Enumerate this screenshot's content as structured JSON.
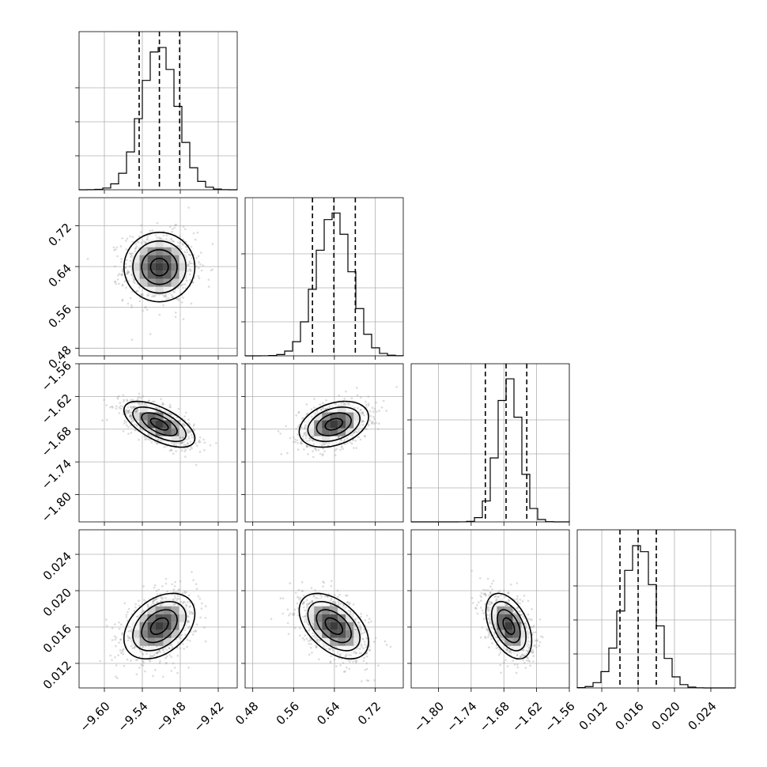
{
  "chart_data": {
    "type": "corner",
    "grid": true,
    "params": [
      {
        "center": -9.513,
        "sigma": 0.028,
        "range": [
          -9.64,
          -9.39
        ],
        "ticks": [
          "-9.60",
          "-9.54",
          "-9.48",
          "-9.42"
        ],
        "tick_values": [
          -9.6,
          -9.54,
          -9.48,
          -9.42
        ],
        "quantiles": [
          -9.545,
          -9.513,
          -9.481
        ]
      },
      {
        "center": 0.639,
        "sigma": 0.034,
        "range": [
          0.465,
          0.775
        ],
        "ticks": [
          "0.48",
          "0.56",
          "0.64",
          "0.72"
        ],
        "tick_values": [
          0.48,
          0.56,
          0.64,
          0.72
        ],
        "quantiles": [
          0.597,
          0.639,
          0.681
        ]
      },
      {
        "center": -1.671,
        "sigma": 0.021,
        "range": [
          -1.85,
          -1.56
        ],
        "ticks": [
          "-1.80",
          "-1.74",
          "-1.68",
          "-1.62",
          "-1.56"
        ],
        "tick_values": [
          -1.8,
          -1.74,
          -1.68,
          -1.62,
          -1.56
        ],
        "quantiles": [
          -1.714,
          -1.676,
          -1.638
        ]
      },
      {
        "center": 0.0161,
        "sigma": 0.0018,
        "range": [
          0.0093,
          0.0267
        ],
        "ticks": [
          "0.012",
          "0.016",
          "0.020",
          "0.024"
        ],
        "tick_values": [
          0.012,
          0.016,
          0.02,
          0.024
        ],
        "quantiles": [
          0.014,
          0.016,
          0.018
        ]
      }
    ],
    "correlations": [
      {
        "pair": [
          1,
          0
        ],
        "rho": 0.0
      },
      {
        "pair": [
          2,
          0
        ],
        "rho": -0.62
      },
      {
        "pair": [
          2,
          1
        ],
        "rho": 0.33
      },
      {
        "pair": [
          3,
          0
        ],
        "rho": 0.38
      },
      {
        "pair": [
          3,
          1
        ],
        "rho": -0.48
      },
      {
        "pair": [
          3,
          2
        ],
        "rho": -0.45
      }
    ],
    "contour_levels_sigma": [
      0.5,
      1.0,
      1.5,
      2.0
    ]
  }
}
